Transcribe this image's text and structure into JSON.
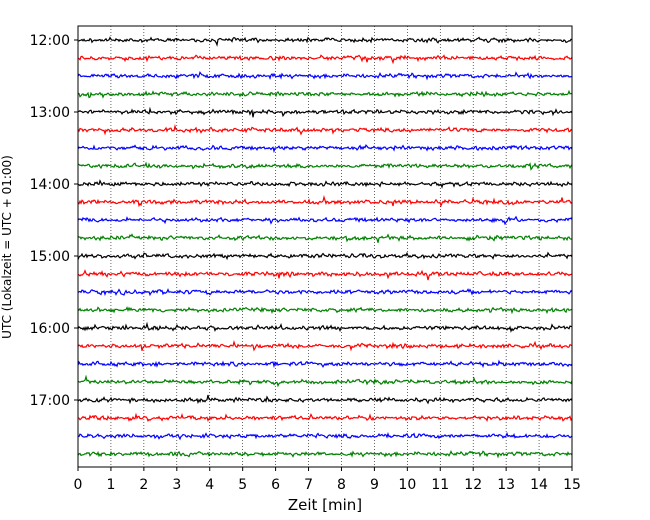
{
  "chart_data": {
    "type": "line",
    "title": "",
    "xlabel": "Zeit  [min]",
    "ylabel": "UTC (Lokalzeit = UTC + 01:00)",
    "xlim": [
      0,
      15
    ],
    "x_ticks": [
      "0",
      "1",
      "2",
      "3",
      "4",
      "5",
      "6",
      "7",
      "8",
      "9",
      "10",
      "11",
      "12",
      "13",
      "14",
      "15"
    ],
    "y_ticks": [
      "12:00",
      "13:00",
      "14:00",
      "15:00",
      "16:00",
      "17:00"
    ],
    "grid": "vertical dotted",
    "line_interval_minutes": 15,
    "color_cycle": [
      "#000000",
      "#ff0000",
      "#0000ff",
      "#008000"
    ],
    "series": [
      {
        "start": "12:00"
      },
      {
        "start": "12:15"
      },
      {
        "start": "12:30"
      },
      {
        "start": "12:45"
      },
      {
        "start": "13:00"
      },
      {
        "start": "13:15"
      },
      {
        "start": "13:30"
      },
      {
        "start": "13:45"
      },
      {
        "start": "14:00"
      },
      {
        "start": "14:15"
      },
      {
        "start": "14:30"
      },
      {
        "start": "14:45"
      },
      {
        "start": "15:00"
      },
      {
        "start": "15:15"
      },
      {
        "start": "15:30"
      },
      {
        "start": "15:45"
      },
      {
        "start": "16:00"
      },
      {
        "start": "16:15"
      },
      {
        "start": "16:30"
      },
      {
        "start": "16:45"
      },
      {
        "start": "17:00"
      },
      {
        "start": "17:15"
      },
      {
        "start": "17:30"
      },
      {
        "start": "17:45"
      }
    ]
  }
}
